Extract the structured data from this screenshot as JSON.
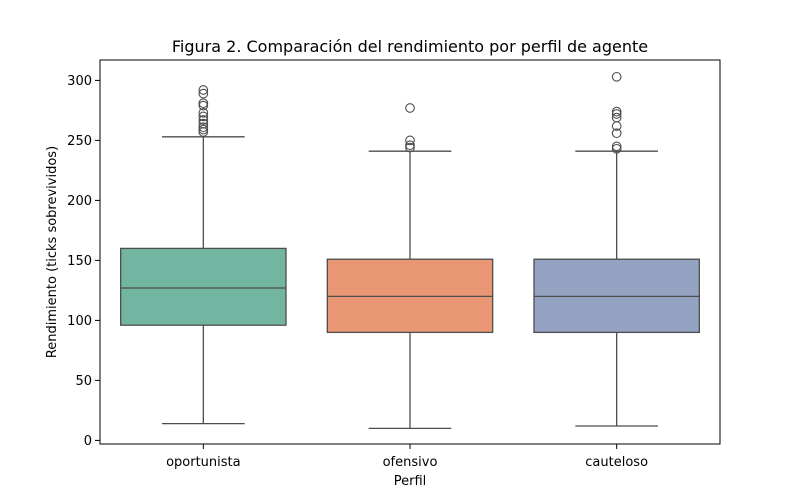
{
  "chart_data": {
    "type": "box",
    "title": "Figura 2. Comparación del rendimiento por perfil de agente",
    "xlabel": "Perfil",
    "ylabel": "Rendimiento (ticks sobrevividos)",
    "ylim": [
      -3,
      317
    ],
    "yticks": [
      0,
      50,
      100,
      150,
      200,
      250,
      300
    ],
    "categories": [
      "oportunista",
      "ofensivo",
      "cauteloso"
    ],
    "colors": [
      "#72b6a1",
      "#e99675",
      "#95a3c3"
    ],
    "boxes": [
      {
        "whisker_low": 14,
        "q1": 96,
        "median": 127,
        "q3": 160,
        "whisker_high": 253,
        "outliers": [
          257,
          259,
          261,
          264,
          267,
          270,
          273,
          279,
          281,
          289,
          292
        ]
      },
      {
        "whisker_low": 10,
        "q1": 90,
        "median": 120,
        "q3": 151,
        "whisker_high": 241,
        "outliers": [
          244,
          246,
          250,
          277
        ]
      },
      {
        "whisker_low": 12,
        "q1": 90,
        "median": 120,
        "q3": 151,
        "whisker_high": 241,
        "outliers": [
          243,
          245,
          256,
          262,
          269,
          272,
          274,
          303
        ]
      }
    ]
  }
}
